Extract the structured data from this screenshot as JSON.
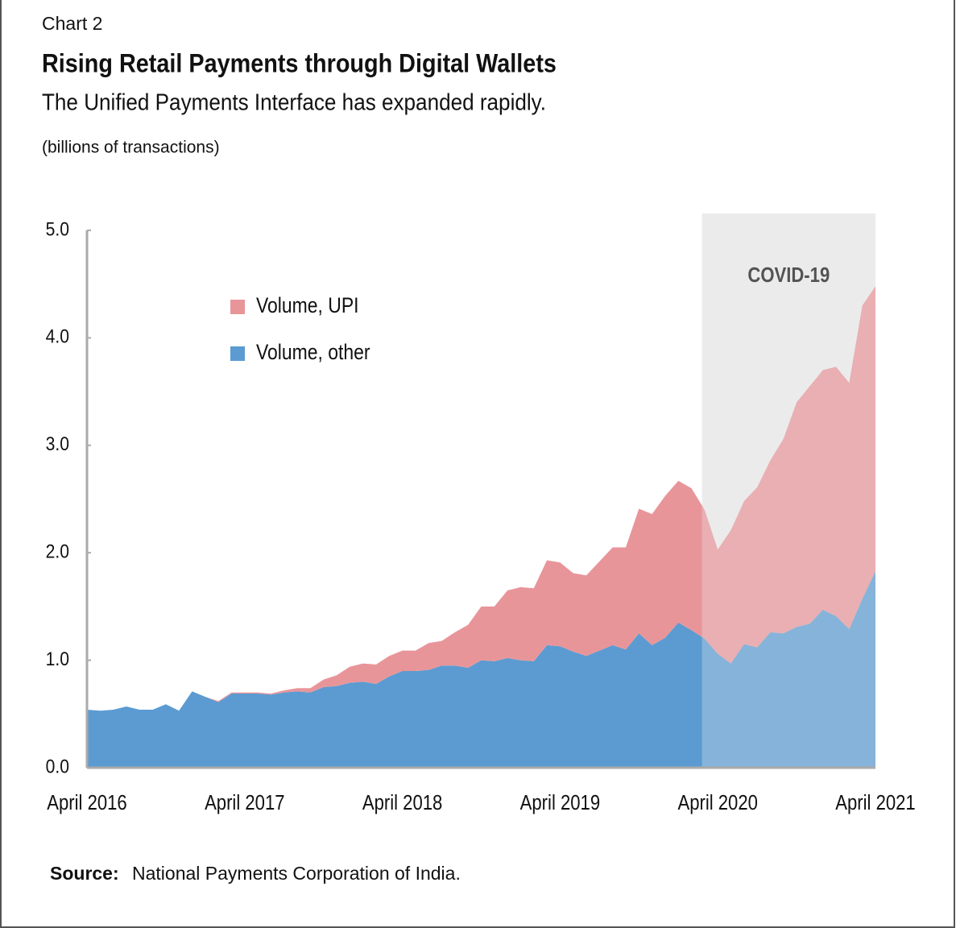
{
  "chart_data": {
    "type": "stacked_area",
    "kicker": "Chart 2",
    "title": "Rising Retail Payments through Digital Wallets",
    "subtitle": "The Unified Payments Interface has expanded rapidly.",
    "y_label": "(billions of transactions)",
    "source_label": "Source:",
    "source": "National Payments Corporation of India.",
    "categories": [
      "April 2016",
      null,
      null,
      null,
      null,
      null,
      null,
      null,
      null,
      null,
      null,
      null,
      "April 2017",
      null,
      null,
      null,
      null,
      null,
      null,
      null,
      null,
      null,
      null,
      null,
      "April 2018",
      null,
      null,
      null,
      null,
      null,
      null,
      null,
      null,
      null,
      null,
      null,
      "April 2019",
      null,
      null,
      null,
      null,
      null,
      null,
      null,
      null,
      null,
      null,
      null,
      "April 2020",
      null,
      null,
      null,
      null,
      null,
      null,
      null,
      null,
      null,
      null,
      null,
      "April 2021"
    ],
    "series": [
      {
        "name": "Volume, other",
        "color": "#5b9bd1",
        "values": [
          0.54,
          0.53,
          0.54,
          0.57,
          0.54,
          0.54,
          0.59,
          0.53,
          0.71,
          0.66,
          0.61,
          0.69,
          0.69,
          0.69,
          0.68,
          0.7,
          0.71,
          0.7,
          0.75,
          0.76,
          0.79,
          0.8,
          0.78,
          0.85,
          0.9,
          0.9,
          0.91,
          0.95,
          0.95,
          0.93,
          1.0,
          0.99,
          1.02,
          1.0,
          0.99,
          1.14,
          1.13,
          1.08,
          1.04,
          1.09,
          1.14,
          1.1,
          1.25,
          1.14,
          1.21,
          1.35,
          1.28,
          1.2,
          1.06,
          0.97,
          1.15,
          1.12,
          1.26,
          1.25,
          1.31,
          1.34,
          1.47,
          1.41,
          1.29,
          1.57,
          1.83
        ]
      },
      {
        "name": "Volume, UPI",
        "color": "#e8959a",
        "values": [
          0,
          0,
          0,
          0,
          0,
          0,
          0,
          0,
          0,
          0,
          0.01,
          0.01,
          0.01,
          0.01,
          0.01,
          0.02,
          0.03,
          0.04,
          0.07,
          0.1,
          0.15,
          0.17,
          0.18,
          0.19,
          0.19,
          0.19,
          0.25,
          0.23,
          0.31,
          0.4,
          0.5,
          0.51,
          0.63,
          0.68,
          0.68,
          0.79,
          0.78,
          0.73,
          0.75,
          0.83,
          0.91,
          0.95,
          1.16,
          1.22,
          1.32,
          1.32,
          1.32,
          1.2,
          0.97,
          1.24,
          1.33,
          1.49,
          1.6,
          1.81,
          2.09,
          2.21,
          2.23,
          2.32,
          2.29,
          2.73,
          2.65
        ]
      }
    ],
    "shade": {
      "text": "COVID-19",
      "from": 46.8,
      "to": 60,
      "color": "#ebebeb"
    },
    "ylim": [
      0,
      5
    ],
    "yticks": [
      {
        "value": 0,
        "label": "0.0"
      },
      {
        "value": 1,
        "label": "1.0"
      },
      {
        "value": 2,
        "label": "2.0"
      },
      {
        "value": 3,
        "label": "3.0"
      },
      {
        "value": 4,
        "label": "4.0"
      },
      {
        "value": 5,
        "label": "5.0"
      }
    ],
    "legend": "upper left",
    "grid": false
  }
}
